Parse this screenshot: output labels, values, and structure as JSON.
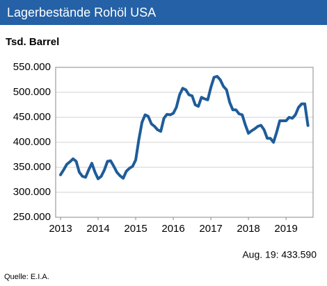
{
  "chart_data": {
    "type": "line",
    "title": "Lagerbestände Rohöl USA",
    "y_label": "Tsd. Barrel",
    "annotation": "Aug. 19:  433.590",
    "source": "Quelle: E.I.A.",
    "x": [
      2013,
      2013.083,
      2013.167,
      2013.25,
      2013.333,
      2013.417,
      2013.5,
      2013.583,
      2013.667,
      2013.75,
      2013.833,
      2013.917,
      2014,
      2014.083,
      2014.167,
      2014.25,
      2014.333,
      2014.417,
      2014.5,
      2014.583,
      2014.667,
      2014.75,
      2014.833,
      2014.917,
      2015,
      2015.083,
      2015.167,
      2015.25,
      2015.333,
      2015.417,
      2015.5,
      2015.583,
      2015.667,
      2015.75,
      2015.833,
      2015.917,
      2016,
      2016.083,
      2016.167,
      2016.25,
      2016.333,
      2016.417,
      2016.5,
      2016.583,
      2016.667,
      2016.75,
      2016.833,
      2016.917,
      2017,
      2017.083,
      2017.167,
      2017.25,
      2017.333,
      2017.417,
      2017.5,
      2017.583,
      2017.667,
      2017.75,
      2017.833,
      2017.917,
      2018,
      2018.083,
      2018.167,
      2018.25,
      2018.333,
      2018.417,
      2018.5,
      2018.583,
      2018.667,
      2018.75,
      2018.833,
      2018.917,
      2019,
      2019.083,
      2019.167,
      2019.25,
      2019.333,
      2019.417,
      2019.5,
      2019.583
    ],
    "series": [
      {
        "name": "Lagerbestände",
        "color": "#1f5c99",
        "values": [
          335000,
          345000,
          356000,
          361000,
          367000,
          362000,
          340000,
          332000,
          330000,
          345000,
          358000,
          340000,
          327000,
          332000,
          345000,
          362000,
          363000,
          352000,
          340000,
          333000,
          328000,
          342000,
          348000,
          352000,
          365000,
          405000,
          440000,
          455000,
          452000,
          437000,
          432000,
          425000,
          422000,
          448000,
          456000,
          455000,
          458000,
          470000,
          495000,
          508000,
          505000,
          495000,
          493000,
          475000,
          472000,
          490000,
          487000,
          485000,
          510000,
          530000,
          532000,
          525000,
          512000,
          505000,
          480000,
          465000,
          465000,
          457000,
          455000,
          435000,
          418000,
          423000,
          427000,
          432000,
          434000,
          425000,
          408000,
          408000,
          400000,
          420000,
          443000,
          443000,
          443000,
          450000,
          448000,
          455000,
          470000,
          477000,
          477000,
          433590
        ]
      }
    ],
    "xlim": [
      2012.87,
      2019.72
    ],
    "xticks": [
      2013,
      2014,
      2015,
      2016,
      2017,
      2018,
      2019
    ],
    "ylim": [
      250000,
      550000
    ],
    "yticks": [
      {
        "value": 250000,
        "label": "250.000"
      },
      {
        "value": 300000,
        "label": "300.000"
      },
      {
        "value": 350000,
        "label": "350.000"
      },
      {
        "value": 400000,
        "label": "400.000"
      },
      {
        "value": 450000,
        "label": "450.000"
      },
      {
        "value": 500000,
        "label": "500.000"
      },
      {
        "value": 550000,
        "label": "550.000"
      }
    ],
    "grid": true,
    "header_color": "#2461a6"
  }
}
